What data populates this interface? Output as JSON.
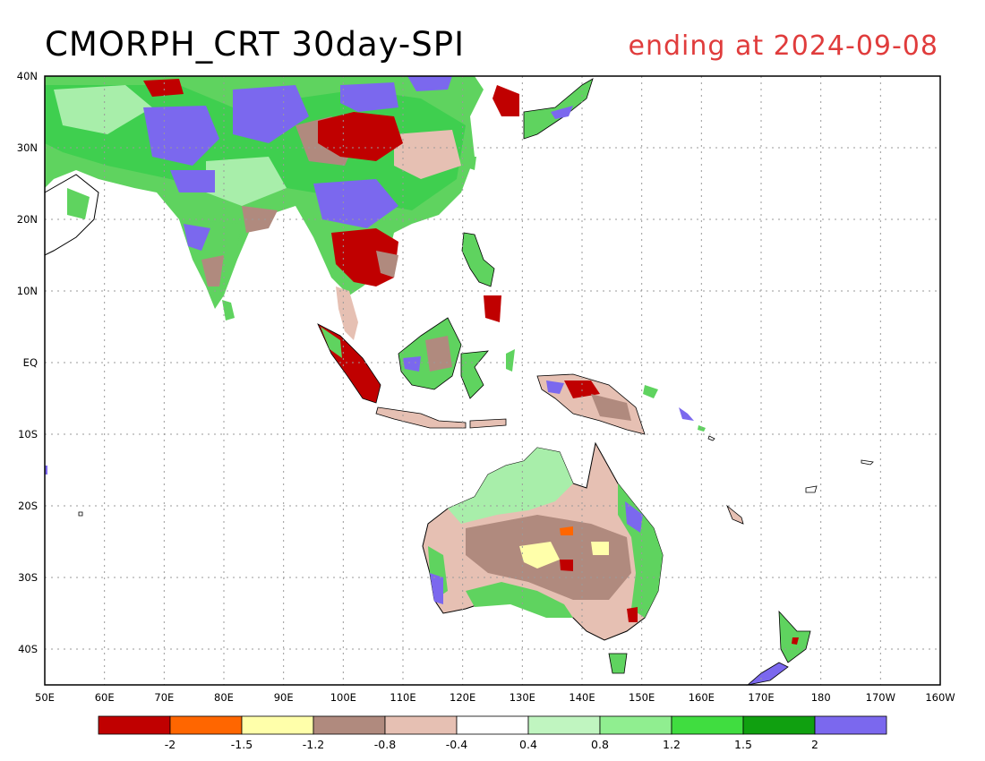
{
  "header": {
    "title": "CMORPH_CRT 30day-SPI",
    "subtitle": "ending at 2024-09-08"
  },
  "map": {
    "lon_labels": [
      "50E",
      "60E",
      "70E",
      "80E",
      "90E",
      "100E",
      "110E",
      "120E",
      "130E",
      "140E",
      "150E",
      "160E",
      "170E",
      "180",
      "170W",
      "160W"
    ],
    "lat_labels": [
      "40N",
      "30N",
      "20N",
      "10N",
      "EQ",
      "10S",
      "20S",
      "30S",
      "40S"
    ],
    "lon_range": [
      50,
      200
    ],
    "lat_range": [
      -45,
      40
    ],
    "gridlines": "dotted"
  },
  "colorbar": {
    "colors": [
      "#c00000",
      "#ff6600",
      "#ffffaa",
      "#b08a7e",
      "#e6c0b3",
      "#ffffff",
      "#c0f5c0",
      "#90ee90",
      "#40dd40",
      "#10a010",
      "#7b68ee"
    ],
    "labels": [
      "-2",
      "-1.5",
      "-1.2",
      "-0.8",
      "-0.4",
      "0.4",
      "0.8",
      "1.2",
      "1.5",
      "2"
    ]
  }
}
